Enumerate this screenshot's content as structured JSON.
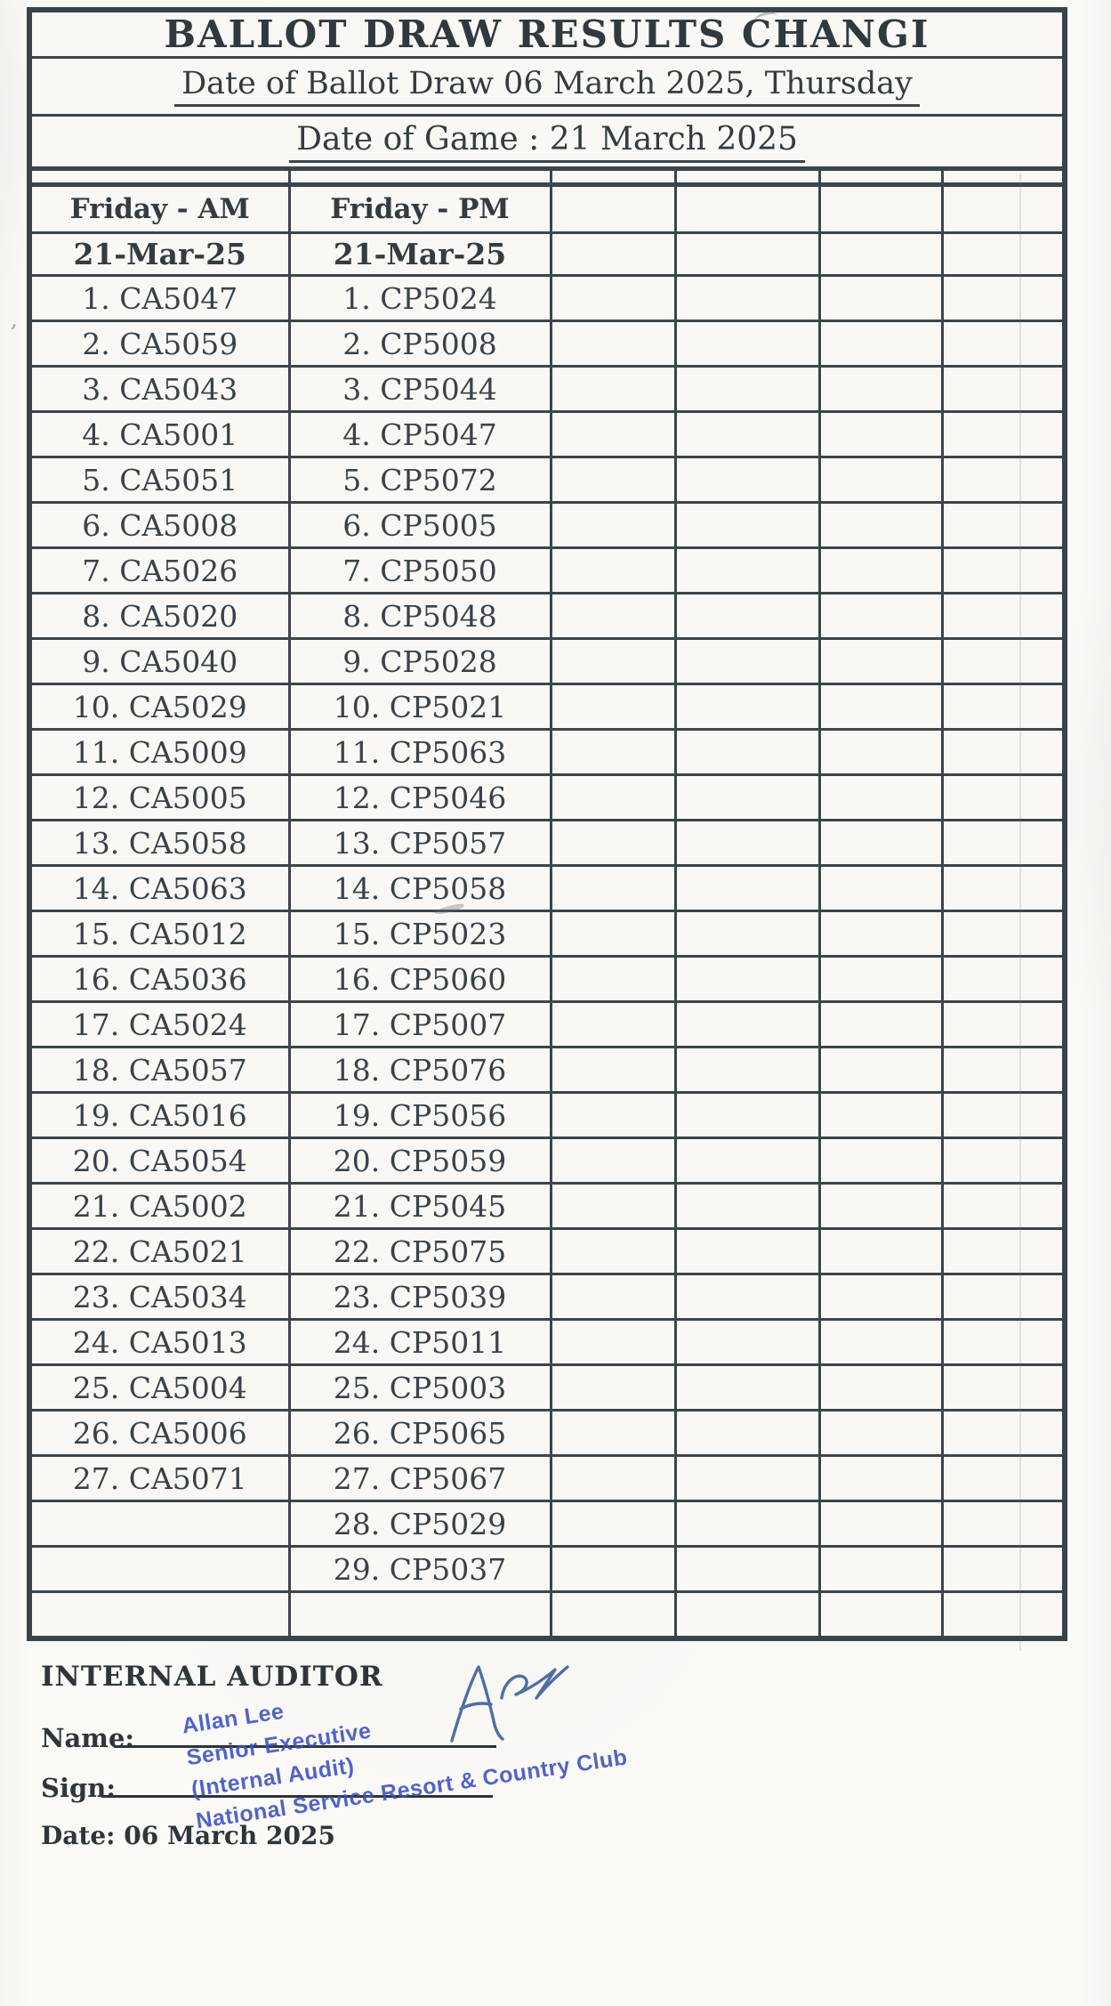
{
  "header": {
    "title": "BALLOT DRAW RESULTS CHANGI",
    "ballot_draw_line": "Date of Ballot Draw 06 March 2025, Thursday",
    "game_date_line": "Date of Game : 21 March 2025"
  },
  "table": {
    "columns": [
      {
        "header": "Friday - AM",
        "date": "21-Mar-25"
      },
      {
        "header": "Friday - PM",
        "date": "21-Mar-25"
      },
      {
        "header": "",
        "date": ""
      },
      {
        "header": "",
        "date": ""
      },
      {
        "header": "",
        "date": ""
      },
      {
        "header": "",
        "date": ""
      }
    ],
    "total_rows": 30,
    "am_entries": [
      "1. CA5047",
      "2. CA5059",
      "3. CA5043",
      "4. CA5001",
      "5. CA5051",
      "6. CA5008",
      "7. CA5026",
      "8. CA5020",
      "9. CA5040",
      "10. CA5029",
      "11. CA5009",
      "12. CA5005",
      "13. CA5058",
      "14. CA5063",
      "15. CA5012",
      "16. CA5036",
      "17. CA5024",
      "18. CA5057",
      "19. CA5016",
      "20. CA5054",
      "21. CA5002",
      "22. CA5021",
      "23. CA5034",
      "24. CA5013",
      "25. CA5004",
      "26. CA5006",
      "27. CA5071"
    ],
    "pm_entries": [
      "1. CP5024",
      "2. CP5008",
      "3. CP5044",
      "4. CP5047",
      "5. CP5072",
      "6. CP5005",
      "7. CP5050",
      "8. CP5048",
      "9. CP5028",
      "10. CP5021",
      "11. CP5063",
      "12. CP5046",
      "13. CP5057",
      "14. CP5058",
      "15. CP5023",
      "16. CP5060",
      "17. CP5007",
      "18. CP5076",
      "19. CP5056",
      "20. CP5059",
      "21. CP5045",
      "22. CP5075",
      "23. CP5039",
      "24. CP5011",
      "25. CP5003",
      "26. CP5065",
      "27. CP5067",
      "28. CP5029",
      "29. CP5037"
    ]
  },
  "footer": {
    "section_title": "INTERNAL AUDITOR",
    "name_label": "Name:",
    "sign_label": "Sign:",
    "date_line": "Date: 06 March 2025",
    "stamp_lines": [
      "Allan Lee",
      "Senior Executive",
      "(Internal Audit)",
      "National Service Resort & Country Club"
    ],
    "signature_mark": "handwritten-initials"
  },
  "colors": {
    "table_border": "#3b454c",
    "text": "#333c42",
    "stamp_blue": "#3a50c2",
    "signature_blue": "#4f6fa3",
    "paper": "#fbfaf7"
  }
}
